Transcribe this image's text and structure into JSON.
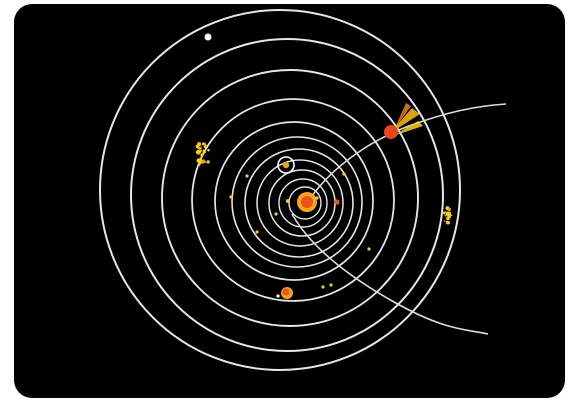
{
  "diagram": {
    "background_color": "#000000",
    "orbit_color": "#e6e6e6",
    "sun_color": "#e8541c",
    "planet_color": "#f0a020",
    "comet_color": "#e8461a",
    "asteroid_color": "#f2d21e",
    "orbit_count": 11,
    "bodies": [
      "sun",
      "inner-planet",
      "marked-planet",
      "outer-planet",
      "comet",
      "asteroid-cluster-left",
      "asteroid-cluster-right",
      "white-moon"
    ]
  }
}
